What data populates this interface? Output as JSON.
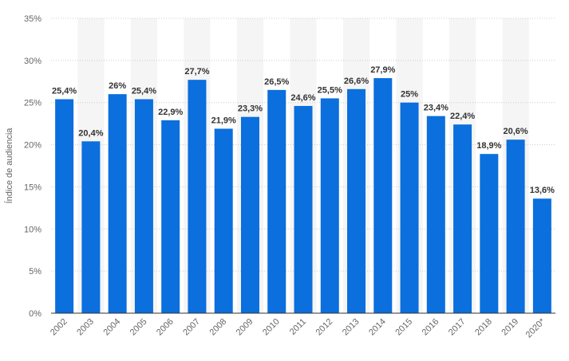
{
  "chart_data": {
    "type": "bar",
    "title": "",
    "xlabel": "",
    "ylabel": "Índice de audiencia",
    "ylim": [
      0,
      35
    ],
    "yticks": [
      0,
      5,
      10,
      15,
      20,
      25,
      30,
      35
    ],
    "ytick_labels": [
      "0%",
      "5%",
      "10%",
      "15%",
      "20%",
      "25%",
      "30%",
      "35%"
    ],
    "categories": [
      "2002",
      "2003",
      "2004",
      "2005",
      "2006",
      "2007",
      "2008",
      "2009",
      "2010",
      "2011",
      "2012",
      "2013",
      "2014",
      "2015",
      "2016",
      "2017",
      "2018",
      "2019",
      "2020*"
    ],
    "values": [
      25.4,
      20.4,
      26,
      25.4,
      22.9,
      27.7,
      21.9,
      23.3,
      26.5,
      24.6,
      25.5,
      26.6,
      27.9,
      25,
      23.4,
      22.4,
      18.9,
      20.6,
      13.6
    ],
    "value_labels": [
      "25,4%",
      "20,4%",
      "26%",
      "25,4%",
      "22,9%",
      "27,7%",
      "21,9%",
      "23,3%",
      "26,5%",
      "24,6%",
      "25,5%",
      "26,6%",
      "27,9%",
      "25%",
      "23,4%",
      "22,4%",
      "18,9%",
      "20,6%",
      "13,6%"
    ],
    "grid": "horizontal dotted",
    "legend": "none",
    "colors": {
      "bar": "#0b6fdd",
      "band": "#f5f5f5",
      "grid": "#cccccc",
      "axis": "#333333"
    }
  }
}
